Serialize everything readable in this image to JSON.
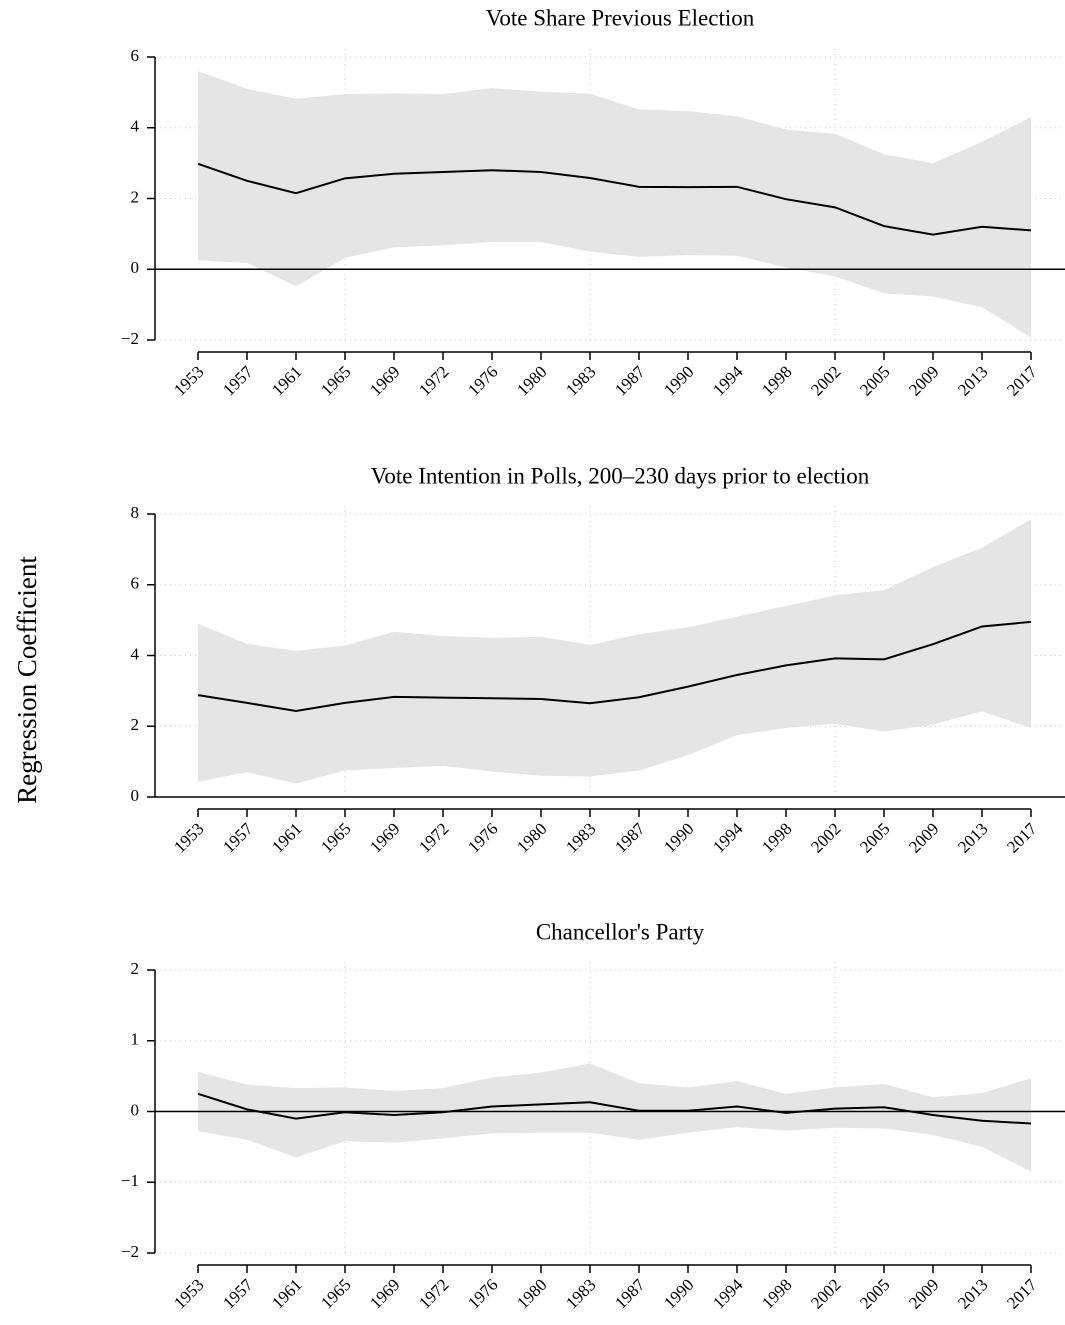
{
  "ylabel": "Regression Coefficient",
  "chart_data": [
    {
      "type": "line",
      "title": "Vote Share Previous Election",
      "categories": [
        "1953",
        "1957",
        "1961",
        "1965",
        "1969",
        "1972",
        "1976",
        "1980",
        "1983",
        "1987",
        "1990",
        "1994",
        "1998",
        "2002",
        "2005",
        "2009",
        "2013",
        "2017"
      ],
      "values": [
        2.98,
        2.5,
        2.15,
        2.57,
        2.7,
        2.75,
        2.8,
        2.75,
        2.58,
        2.33,
        2.32,
        2.33,
        1.98,
        1.75,
        1.22,
        0.98,
        1.2,
        1.1
      ],
      "upper": [
        5.6,
        5.1,
        4.82,
        4.95,
        4.97,
        4.95,
        5.12,
        5.02,
        4.96,
        4.52,
        4.47,
        4.32,
        3.95,
        3.83,
        3.25,
        3.0,
        3.6,
        4.3
      ],
      "lower": [
        0.25,
        0.18,
        -0.48,
        0.32,
        0.62,
        0.68,
        0.77,
        0.77,
        0.5,
        0.35,
        0.4,
        0.38,
        0.05,
        -0.2,
        -0.68,
        -0.77,
        -1.07,
        -1.93
      ],
      "color": "#000000",
      "band_color": "#e5e5e5",
      "ylim": [
        -2,
        6
      ],
      "yticks": [
        {
          "value": -2,
          "label": "−2"
        },
        0,
        2,
        4,
        6
      ],
      "grid": true,
      "zero_line": true
    },
    {
      "type": "line",
      "title": "Vote Intention in Polls, 200–230 days prior to election",
      "categories": [
        "1953",
        "1957",
        "1961",
        "1965",
        "1969",
        "1972",
        "1976",
        "1980",
        "1983",
        "1987",
        "1990",
        "1994",
        "1998",
        "2002",
        "2005",
        "2009",
        "2013",
        "2017"
      ],
      "values": [
        2.88,
        2.66,
        2.43,
        2.66,
        2.83,
        2.81,
        2.79,
        2.77,
        2.65,
        2.82,
        3.12,
        3.45,
        3.72,
        3.92,
        3.89,
        4.32,
        4.82,
        4.95
      ],
      "upper": [
        4.9,
        4.33,
        4.13,
        4.28,
        4.67,
        4.55,
        4.5,
        4.53,
        4.3,
        4.6,
        4.8,
        5.1,
        5.4,
        5.7,
        5.85,
        6.5,
        7.05,
        7.85
      ],
      "lower": [
        0.43,
        0.7,
        0.38,
        0.75,
        0.82,
        0.88,
        0.72,
        0.6,
        0.58,
        0.75,
        1.18,
        1.75,
        1.95,
        2.07,
        1.85,
        2.05,
        2.42,
        1.95
      ],
      "color": "#000000",
      "band_color": "#e5e5e5",
      "ylim": [
        0,
        8
      ],
      "yticks": [
        0,
        2,
        4,
        6,
        8
      ],
      "grid": true,
      "zero_line": true
    },
    {
      "type": "line",
      "title": "Chancellor's Party",
      "categories": [
        "1953",
        "1957",
        "1961",
        "1965",
        "1969",
        "1972",
        "1976",
        "1980",
        "1983",
        "1987",
        "1990",
        "1994",
        "1998",
        "2002",
        "2005",
        "2009",
        "2013",
        "2017"
      ],
      "values": [
        0.25,
        0.03,
        -0.1,
        -0.01,
        -0.05,
        -0.01,
        0.07,
        0.1,
        0.13,
        0.01,
        0.01,
        0.07,
        -0.02,
        0.04,
        0.06,
        -0.05,
        -0.13,
        -0.17
      ],
      "upper": [
        0.56,
        0.38,
        0.33,
        0.34,
        0.29,
        0.33,
        0.48,
        0.55,
        0.68,
        0.4,
        0.34,
        0.43,
        0.25,
        0.34,
        0.39,
        0.2,
        0.26,
        0.47
      ],
      "lower": [
        -0.28,
        -0.4,
        -0.65,
        -0.42,
        -0.44,
        -0.38,
        -0.31,
        -0.3,
        -0.3,
        -0.4,
        -0.3,
        -0.22,
        -0.27,
        -0.23,
        -0.24,
        -0.33,
        -0.5,
        -0.85
      ],
      "color": "#000000",
      "band_color": "#e5e5e5",
      "ylim": [
        -2,
        2
      ],
      "yticks": [
        {
          "value": -2,
          "label": "−2"
        },
        {
          "value": -1,
          "label": "−1"
        },
        0,
        1,
        2
      ],
      "grid": true,
      "zero_line": true
    }
  ]
}
